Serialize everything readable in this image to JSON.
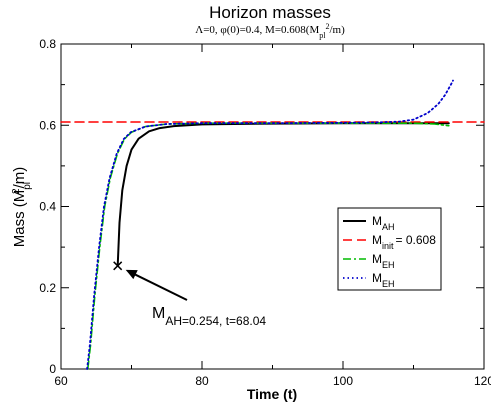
{
  "chart_data": {
    "type": "line",
    "title": "Horizon masses",
    "subtitle": "Λ=0, φ(0)=0.4, M=0.608(M_pl^2/m)",
    "xlabel": "Time (t)",
    "ylabel": "Mass (M_pl^2/m)",
    "xlim": [
      60,
      120
    ],
    "ylim": [
      0,
      0.8
    ],
    "x_ticks": [
      60,
      80,
      100,
      120
    ],
    "y_ticks": [
      0,
      0.2,
      0.4,
      0.6,
      0.8
    ],
    "x_tick_labels": [
      "60",
      "80",
      "100",
      "120"
    ],
    "y_tick_labels": [
      "0",
      "0.2",
      "0.4",
      "0.6",
      "0.8"
    ],
    "grid": false,
    "legend_position": "right",
    "series": [
      {
        "name": "M_AH",
        "color": "#000000",
        "style": "solid",
        "points": [
          [
            68.04,
            0.254
          ],
          [
            68.3,
            0.36
          ],
          [
            68.7,
            0.44
          ],
          [
            69.3,
            0.5
          ],
          [
            70.0,
            0.54
          ],
          [
            71.0,
            0.567
          ],
          [
            72.5,
            0.585
          ],
          [
            74.0,
            0.593
          ],
          [
            76.0,
            0.598
          ],
          [
            80.0,
            0.602
          ],
          [
            90.0,
            0.604
          ],
          [
            100.0,
            0.605
          ],
          [
            110.0,
            0.605
          ],
          [
            115.0,
            0.605
          ]
        ]
      },
      {
        "name": "M_init = 0.608",
        "color": "#ff0000",
        "style": "dashed",
        "points": [
          [
            60,
            0.608
          ],
          [
            120,
            0.608
          ]
        ]
      },
      {
        "name": "M_EH",
        "color": "#00bb00",
        "style": "dashdot",
        "points": [
          [
            63.8,
            0.0
          ],
          [
            64.2,
            0.06
          ],
          [
            64.8,
            0.18
          ],
          [
            65.5,
            0.3
          ],
          [
            66.2,
            0.4
          ],
          [
            67.0,
            0.47
          ],
          [
            68.0,
            0.53
          ],
          [
            69.0,
            0.566
          ],
          [
            70.0,
            0.583
          ],
          [
            72.0,
            0.597
          ],
          [
            75.0,
            0.603
          ],
          [
            80.0,
            0.605
          ],
          [
            90.0,
            0.605
          ],
          [
            100.0,
            0.605
          ],
          [
            110.0,
            0.605
          ],
          [
            113.0,
            0.603
          ],
          [
            115.0,
            0.599
          ]
        ]
      },
      {
        "name": "M_EH",
        "color": "#0000cc",
        "style": "dotted",
        "points": [
          [
            63.7,
            0.0
          ],
          [
            64.1,
            0.06
          ],
          [
            64.7,
            0.18
          ],
          [
            65.4,
            0.3
          ],
          [
            66.1,
            0.4
          ],
          [
            66.9,
            0.47
          ],
          [
            67.9,
            0.53
          ],
          [
            68.9,
            0.566
          ],
          [
            69.9,
            0.583
          ],
          [
            72.0,
            0.597
          ],
          [
            75.0,
            0.603
          ],
          [
            80.0,
            0.605
          ],
          [
            90.0,
            0.605
          ],
          [
            100.0,
            0.606
          ],
          [
            105.0,
            0.607
          ],
          [
            108.0,
            0.609
          ],
          [
            110.0,
            0.614
          ],
          [
            112.0,
            0.63
          ],
          [
            113.5,
            0.652
          ],
          [
            114.5,
            0.675
          ],
          [
            115.3,
            0.7
          ],
          [
            115.6,
            0.71
          ]
        ]
      }
    ],
    "annotation": {
      "text_main": "M",
      "text_sub": "AH=0.254, t=68.04",
      "x": 68.04,
      "y": 0.254
    }
  }
}
